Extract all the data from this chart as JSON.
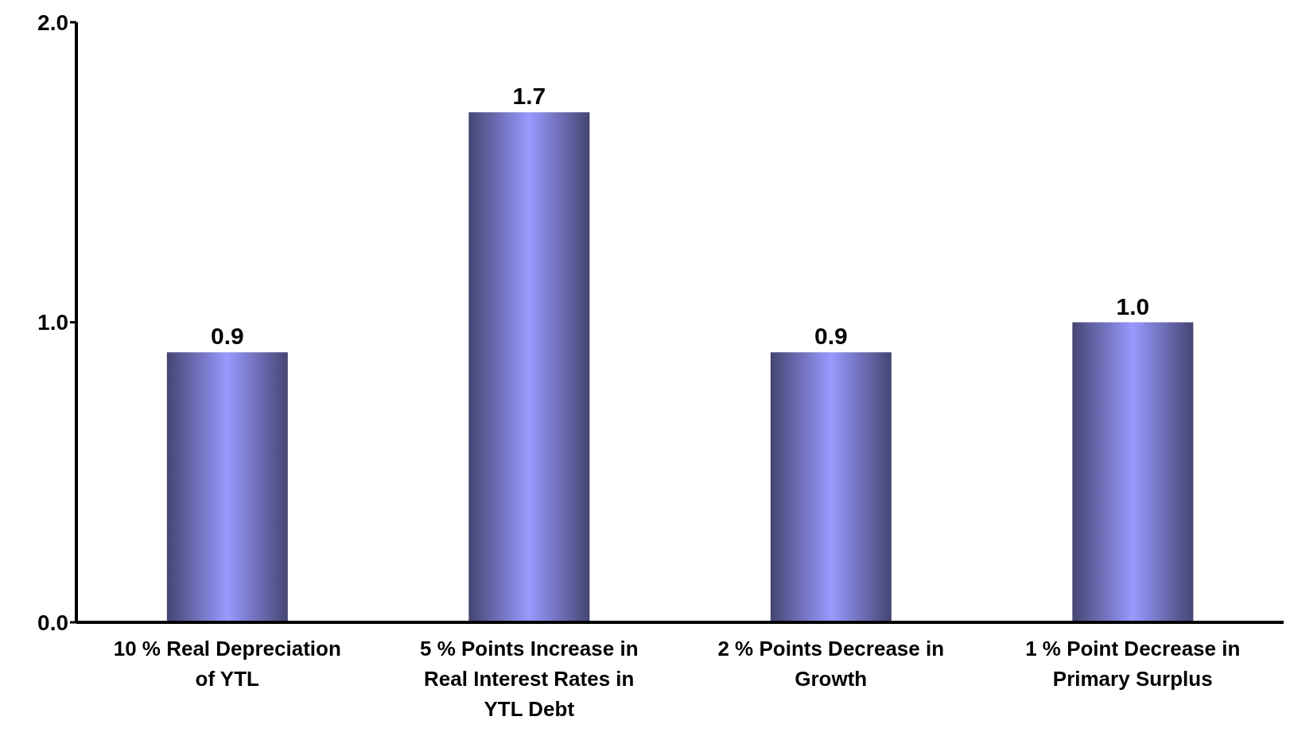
{
  "chart_data": {
    "type": "bar",
    "categories": [
      "10 % Real Depreciation of YTL",
      "5 % Points Increase in Real Interest Rates in YTL Debt",
      "2 % Points Decrease in Growth",
      "1 % Point Decrease in Primary Surplus"
    ],
    "values": [
      0.9,
      1.7,
      0.9,
      1.0
    ],
    "color": "#9999ff",
    "ylim": [
      0,
      2
    ],
    "yticks": [
      {
        "value": 0,
        "label": "0.0"
      },
      {
        "value": 1,
        "label": "1.0"
      },
      {
        "value": 2,
        "label": "2.0"
      }
    ],
    "value_labels": [
      "0.9",
      "1.7",
      "0.9",
      "1.0"
    ],
    "grid": false,
    "legend": false
  }
}
